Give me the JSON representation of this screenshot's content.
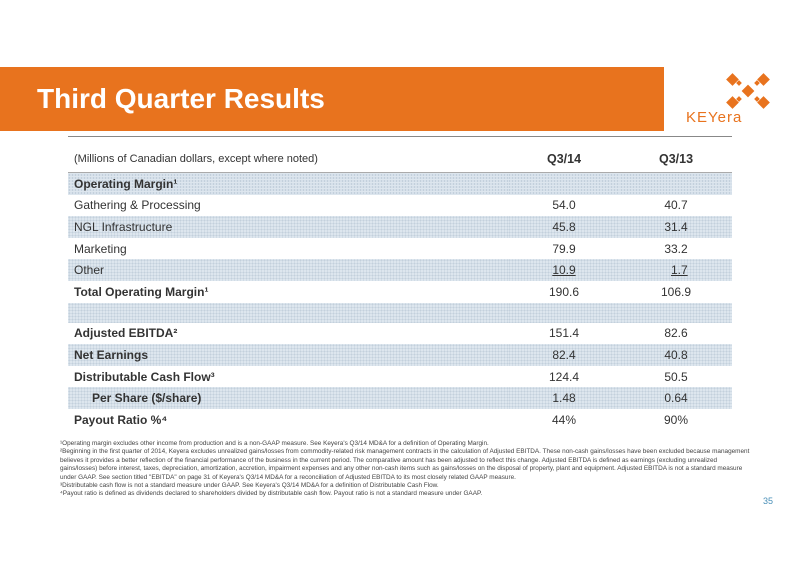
{
  "slide": {
    "title": "Third Quarter Results",
    "page_number": "35",
    "logo_text": "KEYera",
    "brand_color": "#e8731e"
  },
  "table": {
    "header_label": "(Millions of Canadian dollars, except where noted)",
    "columns": [
      "Q3/14",
      "Q3/13"
    ],
    "rows": [
      {
        "label": "Operating Margin¹",
        "q314": "",
        "q313": ""
      },
      {
        "label": "Gathering & Processing",
        "q314": "54.0",
        "q313": "40.7"
      },
      {
        "label": "NGL Infrastructure",
        "q314": "45.8",
        "q313": "31.4"
      },
      {
        "label": "Marketing",
        "q314": "79.9",
        "q313": "33.2"
      },
      {
        "label": "Other",
        "q314": "10.9",
        "q313": "1.7"
      },
      {
        "label": "Total Operating Margin¹",
        "q314": "190.6",
        "q313": "106.9"
      },
      {
        "label": "Adjusted EBITDA²",
        "q314": "151.4",
        "q313": "82.6"
      },
      {
        "label": "Net Earnings",
        "q314": "82.4",
        "q313": "40.8"
      },
      {
        "label": "Distributable Cash Flow³",
        "q314": "124.4",
        "q313": "50.5"
      },
      {
        "label": "Per Share ($/share)",
        "q314": "1.48",
        "q313": "0.64"
      },
      {
        "label": "Payout Ratio %⁴",
        "q314": "44%",
        "q313": "90%"
      }
    ]
  },
  "footnotes": [
    "¹Operating margin excludes other income from production and is a non-GAAP measure. See Keyera's Q3/14 MD&A for a definition of Operating Margin.",
    "²Beginning in the first quarter of 2014, Keyera excludes unrealized gains/losses from commodity-related risk management contracts in the calculation of Adjusted EBITDA. These non-cash gains/losses have been excluded because management believes it provides a better reflection of the financial performance of the business in the current period. The comparative amount has been adjusted to reflect this change. Adjusted EBITDA is defined as earnings (excluding unrealized gains/losses) before interest, taxes, depreciation, amortization, accretion, impairment expenses and any other non-cash items such as gains/losses on the disposal of property, plant and equipment. Adjusted EBITDA is not a standard measure under GAAP.  See section titled \"EBITDA\" on page 31 of Keyera's Q3/14 MD&A for a reconciliation of Adjusted EBITDA to its most closely related GAAP measure.",
    "³Distributable cash flow is not a standard measure under GAAP. See Keyera's Q3/14 MD&A for a definition of Distributable Cash Flow.",
    "⁴Payout ratio is defined as dividends declared to shareholders divided by distributable cash flow. Payout ratio is not a standard measure under GAAP."
  ]
}
